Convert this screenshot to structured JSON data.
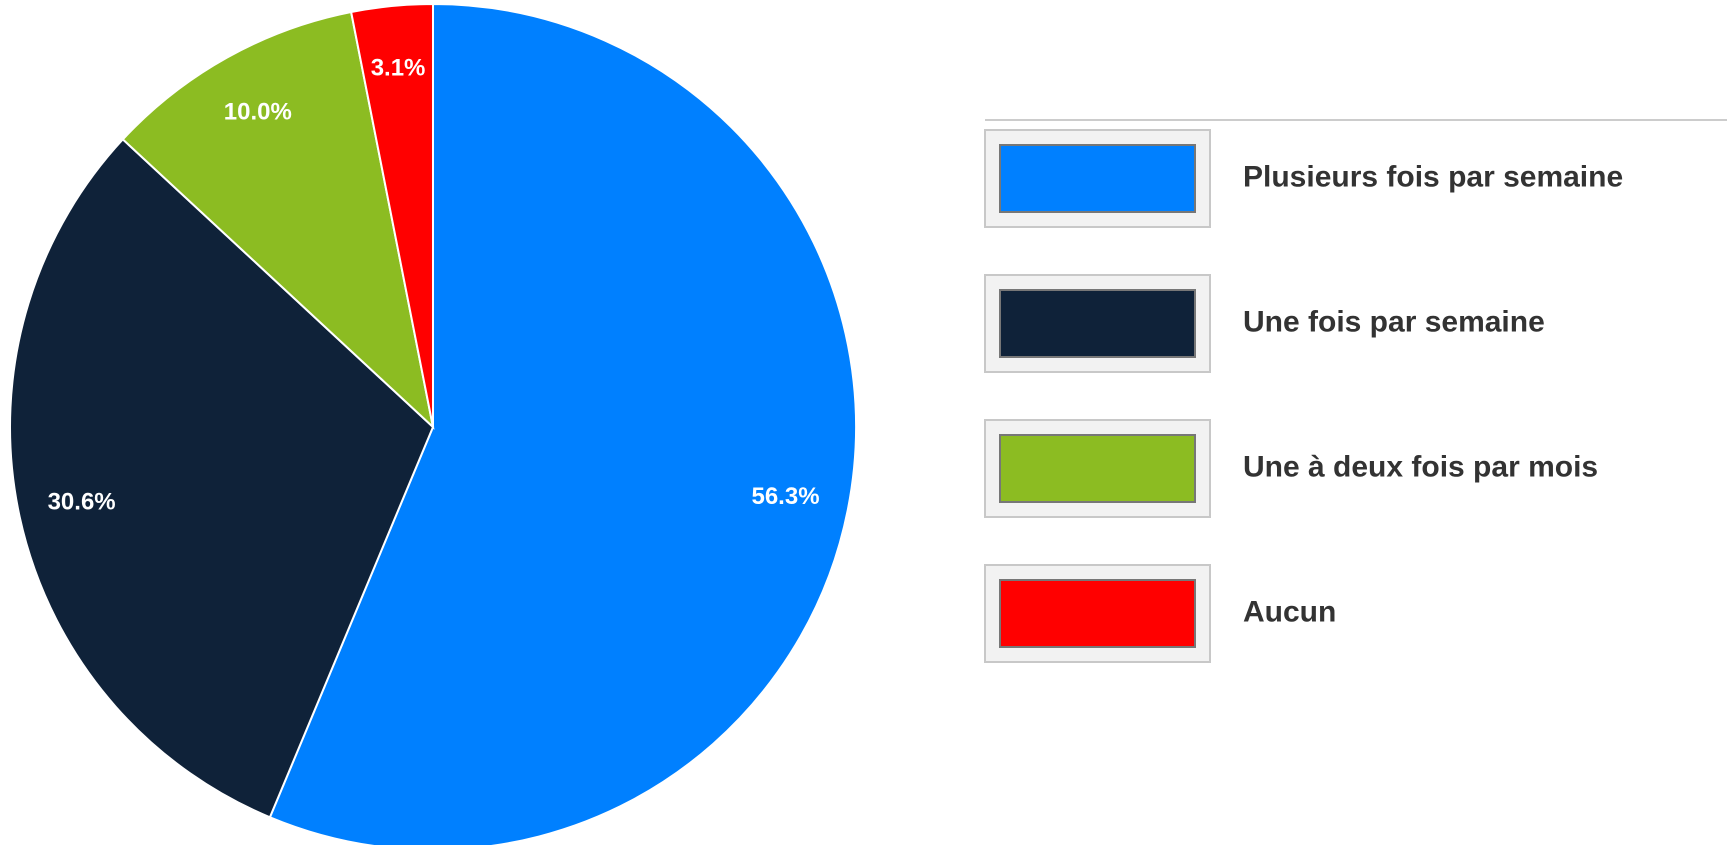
{
  "chart_data": {
    "type": "pie",
    "title": "",
    "start_angle_deg": 0,
    "direction": "clockwise",
    "slices": [
      {
        "label": "Plusieurs fois par semaine",
        "value": 56.3,
        "value_label": "56.3%",
        "color": "#0080ff"
      },
      {
        "label": "Une fois par semaine",
        "value": 30.6,
        "value_label": "30.6%",
        "color": "#0f2239"
      },
      {
        "label": "Une à deux fois par mois",
        "value": 10.0,
        "value_label": "10.0%",
        "color": "#8cbc22"
      },
      {
        "label": "Aucun",
        "value": 3.1,
        "value_label": "3.1%",
        "color": "#ff0000"
      }
    ],
    "legend": {
      "position": "right",
      "entries": [
        "Plusieurs fois par semaine",
        "Une fois par semaine",
        "Une à deux fois par mois",
        "Aucun"
      ]
    }
  }
}
